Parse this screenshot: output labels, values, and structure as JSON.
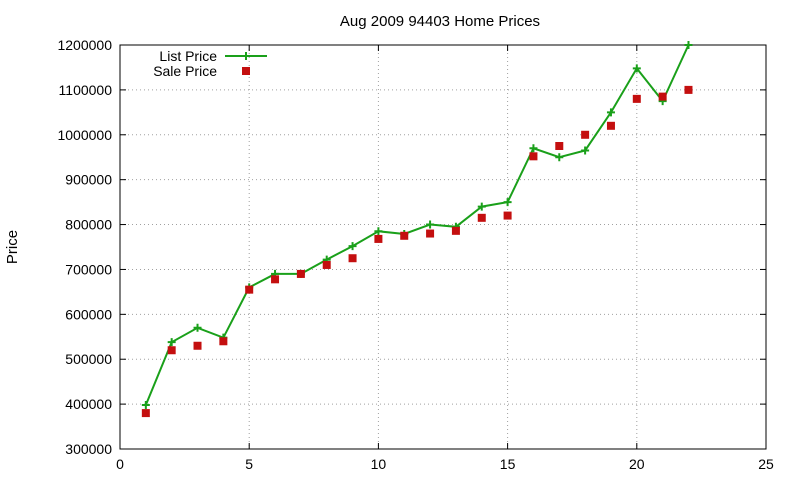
{
  "chart_data": {
    "type": "line",
    "title": "Aug 2009 94403 Home Prices",
    "xlabel": "",
    "ylabel": "Price",
    "xlim": [
      0,
      25
    ],
    "ylim": [
      300000,
      1200000
    ],
    "xticks": [
      "0",
      "5",
      "10",
      "15",
      "20",
      "25"
    ],
    "yticks": [
      "300000",
      "400000",
      "500000",
      "600000",
      "700000",
      "800000",
      "900000",
      "1000000",
      "1100000",
      "1200000"
    ],
    "grid": true,
    "legend_position": "top-left",
    "series": [
      {
        "name": "List Price",
        "style": "line-with-plus-markers",
        "color": "#1aa01a",
        "x": [
          1,
          2,
          3,
          4,
          5,
          6,
          7,
          8,
          9,
          10,
          11,
          12,
          13,
          14,
          15,
          16,
          17,
          18,
          19,
          20,
          21,
          22
        ],
        "y": [
          398000,
          538000,
          570000,
          548000,
          660000,
          690000,
          690000,
          722000,
          752000,
          785000,
          779000,
          800000,
          795000,
          840000,
          850000,
          970000,
          950000,
          965000,
          1050000,
          1148000,
          1075000,
          1200000
        ]
      },
      {
        "name": "Sale Price",
        "style": "square-points",
        "color": "#c40f0f",
        "x": [
          1,
          2,
          3,
          4,
          5,
          6,
          7,
          8,
          9,
          10,
          11,
          12,
          13,
          14,
          15,
          16,
          17,
          18,
          19,
          20,
          21,
          22
        ],
        "y": [
          380000,
          520000,
          530000,
          540000,
          655000,
          678000,
          690000,
          710000,
          725000,
          768000,
          775000,
          780000,
          786000,
          815000,
          820000,
          952000,
          975000,
          1000000,
          1020000,
          1080000,
          1085000,
          1100000
        ]
      }
    ]
  }
}
